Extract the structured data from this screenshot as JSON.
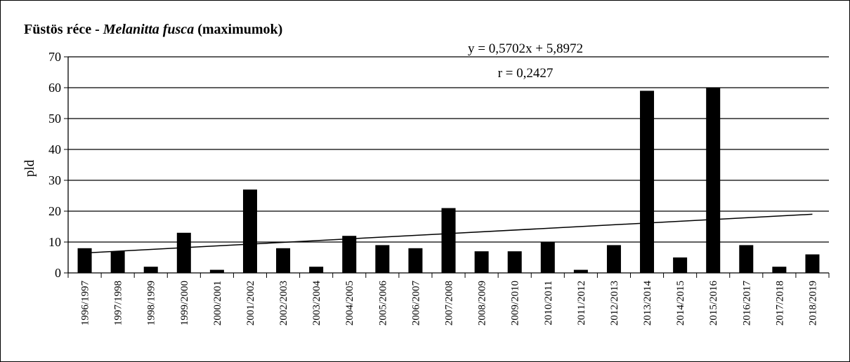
{
  "chart_data": {
    "type": "bar",
    "title_prefix": "Füstös réce - ",
    "title_species": "Melanitta fusca",
    "title_suffix": " (maximumok)",
    "xlabel": "",
    "ylabel": "pld",
    "ylim": [
      0,
      70
    ],
    "yticks": [
      0,
      10,
      20,
      30,
      40,
      50,
      60,
      70
    ],
    "grid": true,
    "legend": "none",
    "bar_color": "#000000",
    "categories": [
      "1996/1997",
      "1997/1998",
      "1998/1999",
      "1999/2000",
      "2000/2001",
      "2001/2002",
      "2002/2003",
      "2003/2004",
      "2004/2005",
      "2005/2006",
      "2006/2007",
      "2007/2008",
      "2008/2009",
      "2009/2010",
      "2010/2011",
      "2011/2012",
      "2012/2013",
      "2013/2014",
      "2014/2015",
      "2015/2016",
      "2016/2017",
      "2017/2018",
      "2018/2019"
    ],
    "values": [
      8,
      7,
      2,
      13,
      1,
      27,
      8,
      2,
      12,
      9,
      8,
      21,
      7,
      7,
      10,
      1,
      9,
      59,
      5,
      60,
      9,
      2,
      6
    ],
    "trendline": {
      "slope": 0.5702,
      "intercept": 5.8972
    },
    "equation_label": "y = 0,5702x   + 5,8972",
    "r_label": "r = 0,2427"
  }
}
